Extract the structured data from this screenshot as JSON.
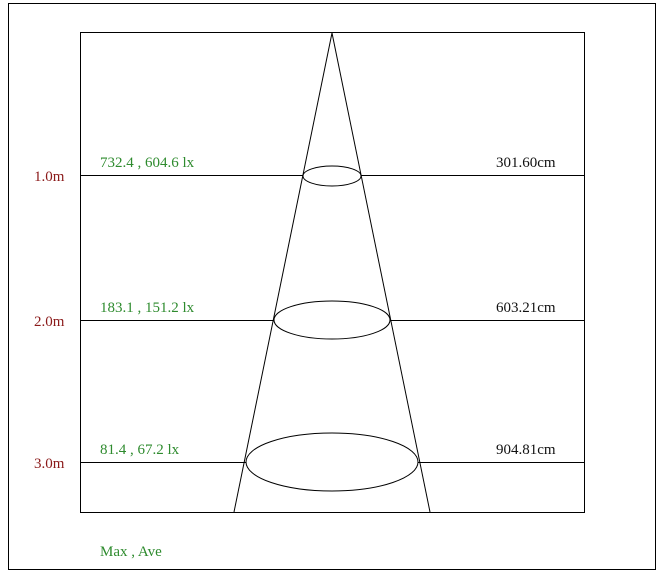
{
  "colors": {
    "distance": "#8b1a1a",
    "lux": "#2e8b2e",
    "diameter": "#111111",
    "lines": "#000000"
  },
  "levels": [
    {
      "distance": "1.0m",
      "lux": "732.4 , 604.6 lx",
      "diameter": "301.60cm"
    },
    {
      "distance": "2.0m",
      "lux": "183.1 , 151.2 lx",
      "diameter": "603.21cm"
    },
    {
      "distance": "3.0m",
      "lux": "81.4 , 67.2 lx",
      "diameter": "904.81cm"
    }
  ],
  "legend": "Max , Ave"
}
